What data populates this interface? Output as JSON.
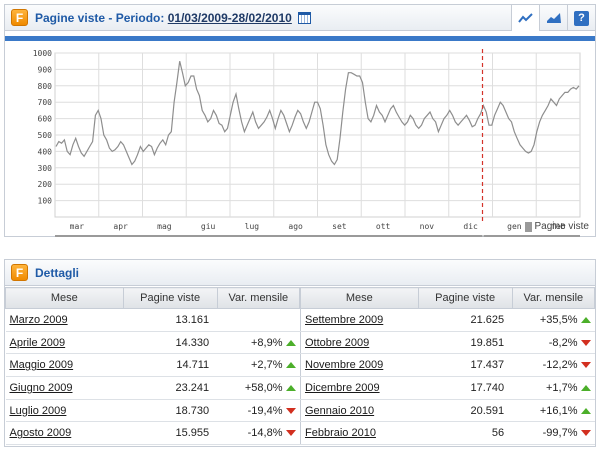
{
  "header": {
    "title_prefix": "Pagine viste - Periodo:",
    "period": "01/03/2009-28/02/2010",
    "tools": [
      "line-chart-icon",
      "area-chart-icon",
      "help-icon"
    ],
    "help_label": "?"
  },
  "chart_data": {
    "type": "line",
    "ylim": [
      0,
      1000
    ],
    "y_ticks": [
      100,
      200,
      300,
      400,
      500,
      600,
      700,
      800,
      900,
      1000
    ],
    "month_labels": [
      "mar",
      "apr",
      "mag",
      "giu",
      "lug",
      "ago",
      "set",
      "ott",
      "nov",
      "dic",
      "gen",
      "feb"
    ],
    "year_labels": [
      "2009",
      "2010"
    ],
    "legend": "Pagine viste",
    "marker_label_date": "2010-01-01",
    "series": [
      {
        "values": [
          430,
          460,
          450,
          470,
          400,
          380,
          440,
          480,
          430,
          390,
          370,
          400,
          430,
          460,
          620,
          650,
          600,
          500,
          470,
          420,
          400,
          410,
          430,
          460,
          440,
          400,
          360,
          320,
          340,
          380,
          430,
          400,
          420,
          440,
          430,
          380,
          420,
          450,
          470,
          440,
          500,
          520,
          700,
          820,
          950,
          880,
          800,
          820,
          860,
          860,
          780,
          740,
          650,
          620,
          580,
          600,
          650,
          620,
          570,
          560,
          520,
          540,
          620,
          700,
          750,
          660,
          580,
          520,
          560,
          600,
          640,
          580,
          540,
          560,
          580,
          610,
          650,
          600,
          540,
          600,
          650,
          620,
          570,
          520,
          560,
          610,
          650,
          630,
          580,
          540,
          580,
          640,
          700,
          700,
          660,
          560,
          440,
          380,
          340,
          320,
          350,
          480,
          640,
          780,
          880,
          880,
          870,
          860,
          860,
          820,
          700,
          600,
          580,
          620,
          680,
          640,
          620,
          580,
          620,
          660,
          680,
          640,
          610,
          580,
          560,
          580,
          620,
          600,
          560,
          540,
          560,
          600,
          620,
          640,
          600,
          580,
          520,
          560,
          600,
          620,
          650,
          620,
          580,
          560,
          580,
          600,
          620,
          590,
          550,
          560,
          600,
          630,
          680,
          640,
          560,
          560,
          620,
          660,
          700,
          680,
          640,
          600,
          580,
          520,
          480,
          440,
          420,
          400,
          390,
          400,
          440,
          520,
          580,
          620,
          650,
          680,
          720,
          700,
          680,
          720,
          740,
          760,
          760,
          780,
          790,
          780,
          800
        ]
      }
    ]
  },
  "details": {
    "title": "Dettagli",
    "columns": [
      "Mese",
      "Pagine viste",
      "Var. mensile"
    ],
    "left_rows": [
      {
        "month": "Marzo 2009",
        "views": "13.161",
        "var": "",
        "dir": ""
      },
      {
        "month": "Aprile 2009",
        "views": "14.330",
        "var": "+8,9%",
        "dir": "up"
      },
      {
        "month": "Maggio 2009",
        "views": "14.711",
        "var": "+2,7%",
        "dir": "up"
      },
      {
        "month": "Giugno 2009",
        "views": "23.241",
        "var": "+58,0%",
        "dir": "up"
      },
      {
        "month": "Luglio 2009",
        "views": "18.730",
        "var": "-19,4%",
        "dir": "down"
      },
      {
        "month": "Agosto 2009",
        "views": "15.955",
        "var": "-14,8%",
        "dir": "down"
      }
    ],
    "right_rows": [
      {
        "month": "Settembre 2009",
        "views": "21.625",
        "var": "+35,5%",
        "dir": "up"
      },
      {
        "month": "Ottobre 2009",
        "views": "19.851",
        "var": "-8,2%",
        "dir": "down"
      },
      {
        "month": "Novembre 2009",
        "views": "17.437",
        "var": "-12,2%",
        "dir": "down"
      },
      {
        "month": "Dicembre 2009",
        "views": "17.740",
        "var": "+1,7%",
        "dir": "up"
      },
      {
        "month": "Gennaio 2010",
        "views": "20.591",
        "var": "+16,1%",
        "dir": "up"
      },
      {
        "month": "Febbraio 2010",
        "views": "56",
        "var": "-99,7%",
        "dir": "down"
      }
    ]
  }
}
